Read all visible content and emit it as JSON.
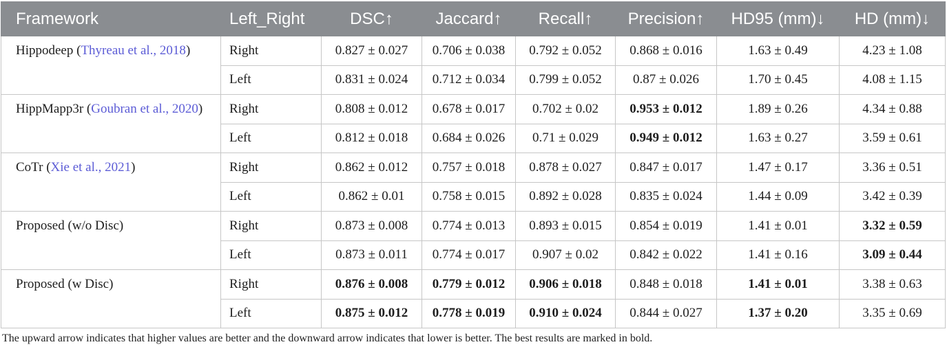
{
  "colors": {
    "header_bg": "#8a8d91",
    "citation_link": "#5c5cd6",
    "text": "#1e1e1e",
    "rule": "#c6c6c6"
  },
  "table": {
    "headers": [
      "Framework",
      "Left_Right",
      "DSC↑",
      "Jaccard↑",
      "Recall↑",
      "Precision↑",
      "HD95 (mm)↓",
      "HD (mm)↓"
    ],
    "groups": [
      {
        "prefix": "Hippodeep (",
        "citation": "Thyreau et al., 2018",
        "suffix": ")",
        "rows": [
          {
            "side": "Right",
            "values": [
              "0.827 ± 0.027",
              "0.706 ± 0.038",
              "0.792 ± 0.052",
              "0.868 ± 0.016",
              "1.63 ± 0.49",
              "4.23 ± 1.08"
            ]
          },
          {
            "side": "Left",
            "values": [
              "0.831 ± 0.024",
              "0.712 ± 0.034",
              "0.799 ± 0.052",
              "0.87 ± 0.026",
              "1.70 ± 0.45",
              "4.08 ± 1.15"
            ]
          }
        ]
      },
      {
        "prefix": "HippMapp3r (",
        "citation": "Goubran et al., 2020",
        "suffix": ")",
        "rows": [
          {
            "side": "Right",
            "values": [
              "0.808 ± 0.012",
              "0.678 ± 0.017",
              "0.702 ± 0.02",
              "0.953 ± 0.012",
              "1.89 ± 0.26",
              "4.34 ± 0.88"
            ]
          },
          {
            "side": "Left",
            "values": [
              "0.812 ± 0.018",
              "0.684 ± 0.026",
              "0.71 ± 0.029",
              "0.949 ± 0.012",
              "1.63 ± 0.27",
              "3.59 ± 0.61"
            ]
          }
        ]
      },
      {
        "prefix": "CoTr (",
        "citation": "Xie et al., 2021",
        "suffix": ")",
        "rows": [
          {
            "side": "Right",
            "values": [
              "0.862 ± 0.012",
              "0.757 ± 0.018",
              "0.878 ± 0.027",
              "0.847 ± 0.017",
              "1.47 ± 0.17",
              "3.36 ± 0.51"
            ]
          },
          {
            "side": "Left",
            "values": [
              "0.862 ± 0.01",
              "0.758 ± 0.015",
              "0.892 ± 0.028",
              "0.835 ± 0.024",
              "1.44 ± 0.09",
              "3.42 ± 0.39"
            ]
          }
        ]
      },
      {
        "prefix": "Proposed (w/o Disc)",
        "rows": [
          {
            "side": "Right",
            "values": [
              "0.873 ± 0.008",
              "0.774 ± 0.013",
              "0.893 ± 0.015",
              "0.854 ± 0.019",
              "1.41 ± 0.01",
              "3.32 ± 0.59"
            ]
          },
          {
            "side": "Left",
            "values": [
              "0.873 ± 0.011",
              "0.774 ± 0.017",
              "0.907 ± 0.02",
              "0.842 ± 0.022",
              "1.41 ± 0.16",
              "3.09 ± 0.44"
            ]
          }
        ]
      },
      {
        "prefix": "Proposed (w Disc)",
        "rows": [
          {
            "side": "Right",
            "values": [
              "0.876 ± 0.008",
              "0.779 ± 0.012",
              "0.906 ± 0.018",
              "0.848 ± 0.018",
              "1.41 ± 0.01",
              "3.38 ± 0.63"
            ]
          },
          {
            "side": "Left",
            "values": [
              "0.875 ± 0.012",
              "0.778 ± 0.019",
              "0.910 ± 0.024",
              "0.844 ± 0.027",
              "1.37 ± 0.20",
              "3.35 ± 0.69"
            ]
          }
        ]
      }
    ]
  },
  "footnote": "The upward arrow indicates that higher values are better and the downward arrow indicates that lower is better. The best results are marked in bold."
}
